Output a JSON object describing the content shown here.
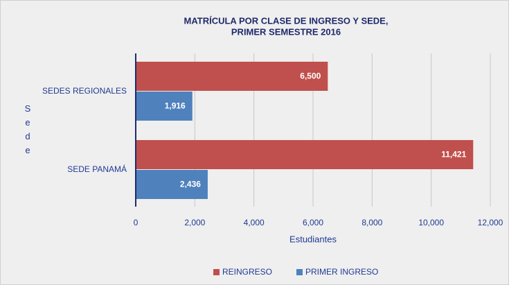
{
  "chart_data": {
    "type": "hbar",
    "title": [
      "MATRÍCULA POR CLASE DE INGRESO Y SEDE,",
      "PRIMER SEMESTRE 2016"
    ],
    "categories": [
      "SEDES REGIONALES",
      "SEDE PANAMÁ"
    ],
    "series": [
      {
        "name": "REINGRESO",
        "color": "#c0504d",
        "values": [
          6500,
          11421
        ],
        "value_labels": [
          "6,500",
          "11,421"
        ]
      },
      {
        "name": "PRIMER INGRESO",
        "color": "#4f81bd",
        "values": [
          1916,
          2436
        ],
        "value_labels": [
          "1,916",
          "2,436"
        ]
      }
    ],
    "x_label": "Estudiantes",
    "y_label": "Sede",
    "xlim": [
      0,
      12000
    ],
    "xticks": [
      0,
      {
        "value": 2000,
        "label": "2,000"
      },
      {
        "value": 4000,
        "label": "4,000"
      },
      {
        "value": 6000,
        "label": "6,000"
      },
      {
        "value": 8000,
        "label": "8,000"
      },
      {
        "value": 10000,
        "label": "10,000"
      },
      {
        "value": 12000,
        "label": "12,000"
      }
    ],
    "grid": true,
    "legend": "bottom"
  }
}
